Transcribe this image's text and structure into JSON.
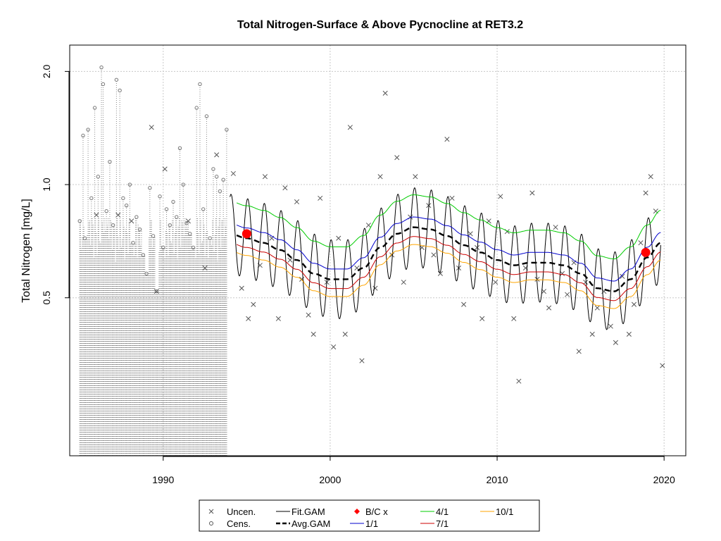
{
  "chart_data": {
    "type": "line",
    "title": "Total Nitrogen-Surface & Above Pycnocline at RET3.2",
    "xlabel": "",
    "ylabel": "Total Nitrogen [mg/L]",
    "y_scale": "log",
    "xlim": [
      1984.4,
      2021.3
    ],
    "ylim": [
      0.19,
      2.35
    ],
    "x_ticks": [
      {
        "value": 1990,
        "label": "1990"
      },
      {
        "value": 2000,
        "label": "2000"
      },
      {
        "value": 2010,
        "label": "2010"
      },
      {
        "value": 2020,
        "label": "2020"
      }
    ],
    "y_ticks": [
      {
        "value": 0.5,
        "label": "0.5"
      },
      {
        "value": 1.0,
        "label": "1.0"
      },
      {
        "value": 2.0,
        "label": "2.0"
      }
    ],
    "grid": true,
    "legend_position": "bottom",
    "legend": [
      {
        "key": "uncen",
        "label": "Uncen.",
        "color": "#555555"
      },
      {
        "key": "cens",
        "label": "Cens.",
        "color": "#555555"
      },
      {
        "key": "fit_gam",
        "label": "Fit.GAM",
        "color": "#000000"
      },
      {
        "key": "avg_gam",
        "label": "Avg.GAM",
        "color": "#000000"
      },
      {
        "key": "bc",
        "label": "B/C x",
        "color": "#ff0000"
      },
      {
        "key": "p1",
        "label": "1/1",
        "color": "#0000cc"
      },
      {
        "key": "p4",
        "label": "4/1",
        "color": "#00cc00"
      },
      {
        "key": "p7",
        "label": "7/1",
        "color": "#cc0000"
      },
      {
        "key": "p10",
        "label": "10/1",
        "color": "#ffa500"
      }
    ],
    "avg_gam": {
      "x": [
        1994,
        1995,
        1996,
        1997,
        1998,
        1999,
        2000,
        2001,
        2002,
        2003,
        2004,
        2005,
        2006,
        2007,
        2008,
        2009,
        2010,
        2011,
        2012,
        2013,
        2014,
        2015,
        2016,
        2017,
        2018,
        2019,
        2019.8
      ],
      "y": [
        0.74,
        0.72,
        0.7,
        0.67,
        0.63,
        0.58,
        0.56,
        0.56,
        0.6,
        0.68,
        0.74,
        0.77,
        0.76,
        0.73,
        0.69,
        0.66,
        0.63,
        0.61,
        0.62,
        0.62,
        0.61,
        0.58,
        0.53,
        0.52,
        0.56,
        0.64,
        0.7
      ]
    },
    "seasonal_lines": {
      "p1": {
        "ratio": 1.065
      },
      "p4": {
        "ratio": 1.22
      },
      "p7": {
        "ratio": 0.945
      },
      "p10": {
        "ratio": 0.9
      }
    },
    "fit_gam": {
      "x_start": 1994,
      "x_end": 2019.8,
      "seasonal_amplitude_log10": 0.105
    },
    "bc_points": [
      {
        "x": 1995.0,
        "y": 0.74
      },
      {
        "x": 2018.9,
        "y": 0.66
      }
    ],
    "censored": {
      "x_start": 1985,
      "x_end": 1993.8,
      "lower_value": 0.19,
      "points": [
        {
          "x": 1985.0,
          "y": 0.8
        },
        {
          "x": 1985.2,
          "y": 1.35
        },
        {
          "x": 1985.3,
          "y": 0.72
        },
        {
          "x": 1985.5,
          "y": 1.4
        },
        {
          "x": 1985.7,
          "y": 0.92
        },
        {
          "x": 1985.9,
          "y": 1.6
        },
        {
          "x": 1986.1,
          "y": 1.05
        },
        {
          "x": 1986.3,
          "y": 2.05
        },
        {
          "x": 1986.4,
          "y": 1.85
        },
        {
          "x": 1986.6,
          "y": 0.85
        },
        {
          "x": 1986.8,
          "y": 1.15
        },
        {
          "x": 1987.0,
          "y": 0.78
        },
        {
          "x": 1987.2,
          "y": 1.9
        },
        {
          "x": 1987.4,
          "y": 1.78
        },
        {
          "x": 1987.6,
          "y": 0.92
        },
        {
          "x": 1987.8,
          "y": 0.88
        },
        {
          "x": 1988.0,
          "y": 1.0
        },
        {
          "x": 1988.2,
          "y": 0.7
        },
        {
          "x": 1988.4,
          "y": 0.82
        },
        {
          "x": 1988.6,
          "y": 0.76
        },
        {
          "x": 1988.8,
          "y": 0.65
        },
        {
          "x": 1989.0,
          "y": 0.58
        },
        {
          "x": 1989.2,
          "y": 0.98
        },
        {
          "x": 1989.4,
          "y": 0.73
        },
        {
          "x": 1989.6,
          "y": 0.52
        },
        {
          "x": 1989.8,
          "y": 0.93
        },
        {
          "x": 1990.0,
          "y": 0.68
        },
        {
          "x": 1990.2,
          "y": 0.86
        },
        {
          "x": 1990.4,
          "y": 0.78
        },
        {
          "x": 1990.6,
          "y": 0.9
        },
        {
          "x": 1990.8,
          "y": 0.82
        },
        {
          "x": 1991.0,
          "y": 1.25
        },
        {
          "x": 1991.2,
          "y": 1.0
        },
        {
          "x": 1991.4,
          "y": 0.79
        },
        {
          "x": 1991.6,
          "y": 0.74
        },
        {
          "x": 1991.8,
          "y": 0.68
        },
        {
          "x": 1992.0,
          "y": 1.6
        },
        {
          "x": 1992.2,
          "y": 1.85
        },
        {
          "x": 1992.4,
          "y": 0.86
        },
        {
          "x": 1992.6,
          "y": 1.52
        },
        {
          "x": 1992.8,
          "y": 0.72
        },
        {
          "x": 1993.0,
          "y": 1.1
        },
        {
          "x": 1993.2,
          "y": 1.05
        },
        {
          "x": 1993.4,
          "y": 0.96
        },
        {
          "x": 1993.6,
          "y": 1.03
        },
        {
          "x": 1993.8,
          "y": 1.4
        }
      ]
    },
    "uncensored": {
      "points": [
        {
          "x": 1986.0,
          "y": 0.83
        },
        {
          "x": 1987.3,
          "y": 0.83
        },
        {
          "x": 1988.1,
          "y": 0.8
        },
        {
          "x": 1989.3,
          "y": 1.42
        },
        {
          "x": 1989.6,
          "y": 0.52
        },
        {
          "x": 1990.1,
          "y": 1.1
        },
        {
          "x": 1991.5,
          "y": 0.8
        },
        {
          "x": 1992.5,
          "y": 0.6
        },
        {
          "x": 1993.2,
          "y": 1.2
        },
        {
          "x": 1994.2,
          "y": 1.07
        },
        {
          "x": 1994.7,
          "y": 0.53
        },
        {
          "x": 1995.1,
          "y": 0.44
        },
        {
          "x": 1995.4,
          "y": 0.48
        },
        {
          "x": 1995.8,
          "y": 0.61
        },
        {
          "x": 1996.1,
          "y": 1.05
        },
        {
          "x": 1996.5,
          "y": 0.72
        },
        {
          "x": 1996.9,
          "y": 0.44
        },
        {
          "x": 1997.3,
          "y": 0.98
        },
        {
          "x": 1997.6,
          "y": 0.63
        },
        {
          "x": 1998.0,
          "y": 0.9
        },
        {
          "x": 1998.3,
          "y": 0.56
        },
        {
          "x": 1998.7,
          "y": 0.45
        },
        {
          "x": 1999.0,
          "y": 0.4
        },
        {
          "x": 1999.4,
          "y": 0.92
        },
        {
          "x": 1999.8,
          "y": 0.55
        },
        {
          "x": 2000.2,
          "y": 0.37
        },
        {
          "x": 2000.5,
          "y": 0.72
        },
        {
          "x": 2000.9,
          "y": 0.4
        },
        {
          "x": 2001.2,
          "y": 1.42
        },
        {
          "x": 2001.6,
          "y": 0.6
        },
        {
          "x": 2001.9,
          "y": 0.34
        },
        {
          "x": 2002.3,
          "y": 0.78
        },
        {
          "x": 2002.7,
          "y": 0.53
        },
        {
          "x": 2003.0,
          "y": 1.05
        },
        {
          "x": 2003.3,
          "y": 1.75
        },
        {
          "x": 2003.7,
          "y": 0.65
        },
        {
          "x": 2004.0,
          "y": 1.18
        },
        {
          "x": 2004.4,
          "y": 0.55
        },
        {
          "x": 2004.8,
          "y": 0.82
        },
        {
          "x": 2005.1,
          "y": 1.05
        },
        {
          "x": 2005.5,
          "y": 0.68
        },
        {
          "x": 2005.9,
          "y": 0.88
        },
        {
          "x": 2006.2,
          "y": 0.65
        },
        {
          "x": 2006.6,
          "y": 0.58
        },
        {
          "x": 2007.0,
          "y": 1.32
        },
        {
          "x": 2007.3,
          "y": 0.92
        },
        {
          "x": 2007.7,
          "y": 0.6
        },
        {
          "x": 2008.0,
          "y": 0.48
        },
        {
          "x": 2008.4,
          "y": 0.74
        },
        {
          "x": 2008.8,
          "y": 0.68
        },
        {
          "x": 2009.1,
          "y": 0.44
        },
        {
          "x": 2009.5,
          "y": 0.8
        },
        {
          "x": 2009.9,
          "y": 0.55
        },
        {
          "x": 2010.2,
          "y": 0.93
        },
        {
          "x": 2010.6,
          "y": 0.75
        },
        {
          "x": 2011.0,
          "y": 0.44
        },
        {
          "x": 2011.3,
          "y": 0.3
        },
        {
          "x": 2011.7,
          "y": 0.6
        },
        {
          "x": 2012.1,
          "y": 0.95
        },
        {
          "x": 2012.4,
          "y": 0.56
        },
        {
          "x": 2012.8,
          "y": 0.52
        },
        {
          "x": 2013.1,
          "y": 0.47
        },
        {
          "x": 2013.5,
          "y": 0.77
        },
        {
          "x": 2013.9,
          "y": 0.58
        },
        {
          "x": 2014.2,
          "y": 0.51
        },
        {
          "x": 2014.6,
          "y": 0.62
        },
        {
          "x": 2014.9,
          "y": 0.36
        },
        {
          "x": 2015.3,
          "y": 0.55
        },
        {
          "x": 2015.7,
          "y": 0.4
        },
        {
          "x": 2016.0,
          "y": 0.47
        },
        {
          "x": 2016.4,
          "y": 0.52
        },
        {
          "x": 2016.8,
          "y": 0.42
        },
        {
          "x": 2017.1,
          "y": 0.38
        },
        {
          "x": 2017.5,
          "y": 0.57
        },
        {
          "x": 2017.9,
          "y": 0.4
        },
        {
          "x": 2018.2,
          "y": 0.48
        },
        {
          "x": 2018.6,
          "y": 0.7
        },
        {
          "x": 2018.9,
          "y": 0.95
        },
        {
          "x": 2019.2,
          "y": 1.05
        },
        {
          "x": 2019.5,
          "y": 0.85
        },
        {
          "x": 2019.9,
          "y": 0.33
        }
      ]
    }
  }
}
